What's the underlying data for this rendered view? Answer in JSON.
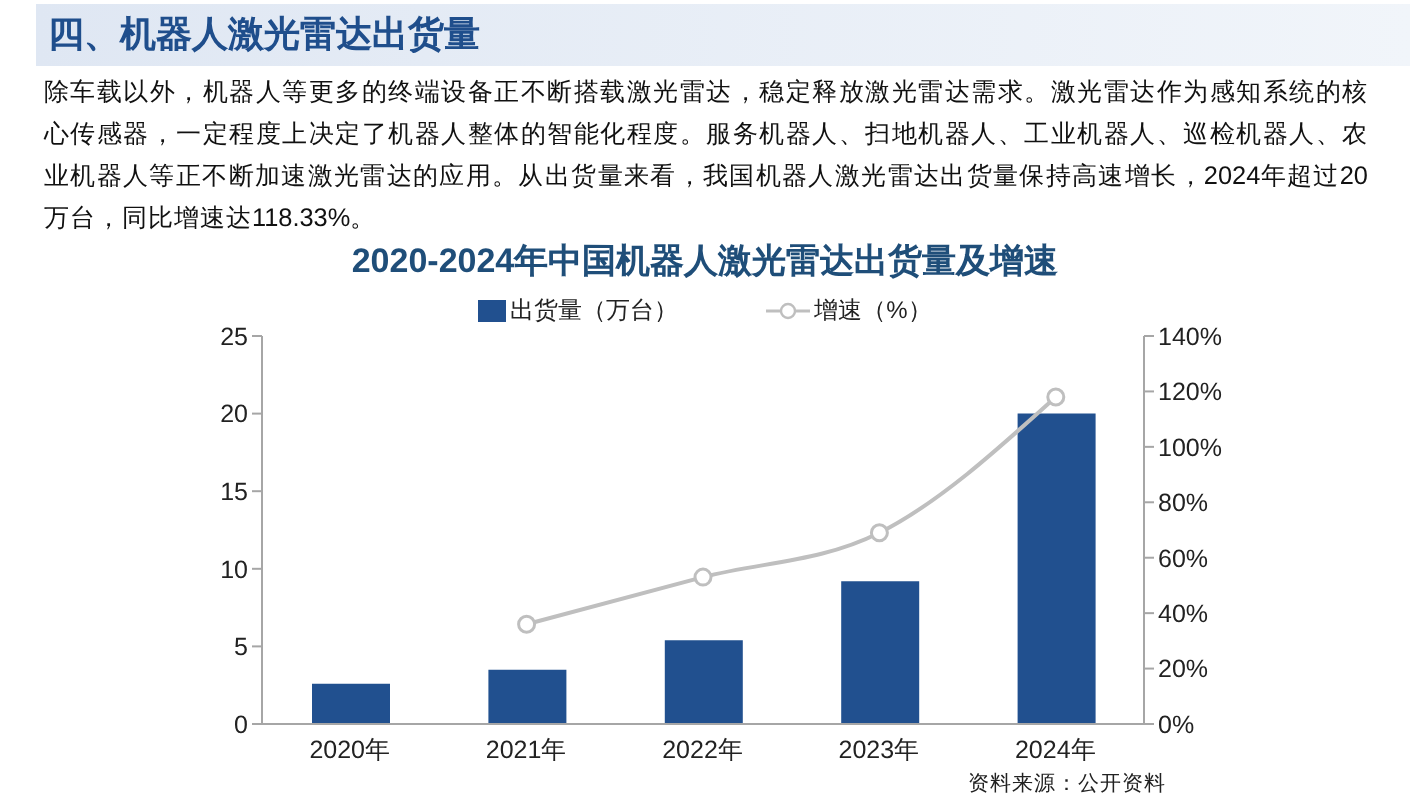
{
  "chart_data": {
    "type": "bar",
    "title": "2020-2024年中国机器人激光雷达出货量及增速",
    "annotations": [
      "四、机器人激光雷达出货量",
      "除车载以外，机器人等更多的终端设备正不断搭载激光雷达，稳定释放激光雷达需求。激光雷达作为感知系统的核心传感器，一定程度上决定了机器人整体的智能化程度。服务机器人、扫地机器人、工业机器人、巡检机器人、农业机器人等正不断加速激光雷达的应用。从出货量来看，我国机器人激光雷达出货量保持高速增长，2024年超过20万台，同比增速达118.33%。",
      "资料来源：公开资料"
    ],
    "categories": [
      "2020年",
      "2021年",
      "2022年",
      "2023年",
      "2024年"
    ],
    "series": [
      {
        "name": "出货量（万台）",
        "color": "#21508f",
        "values": [
          2.6,
          3.5,
          5.4,
          9.2,
          20.0
        ]
      },
      {
        "name": "增速（%）",
        "type": "line",
        "axis": "y2",
        "color": "#bfbfbf",
        "values": [
          null,
          36,
          53,
          69,
          118
        ]
      }
    ],
    "ylim": [
      0,
      25
    ],
    "yticks": [
      0,
      5,
      10,
      15,
      20,
      25
    ],
    "y2lim": [
      0,
      140
    ],
    "y2ticks": [
      {
        "value": 0,
        "label": "0%"
      },
      {
        "value": 20,
        "label": "20%"
      },
      {
        "value": 40,
        "label": "40%"
      },
      {
        "value": 60,
        "label": "60%"
      },
      {
        "value": 80,
        "label": "80%"
      },
      {
        "value": 100,
        "label": "100%"
      },
      {
        "value": 120,
        "label": "120%"
      },
      {
        "value": 140,
        "label": "140%"
      }
    ],
    "legend": "top",
    "marker": "circle"
  }
}
